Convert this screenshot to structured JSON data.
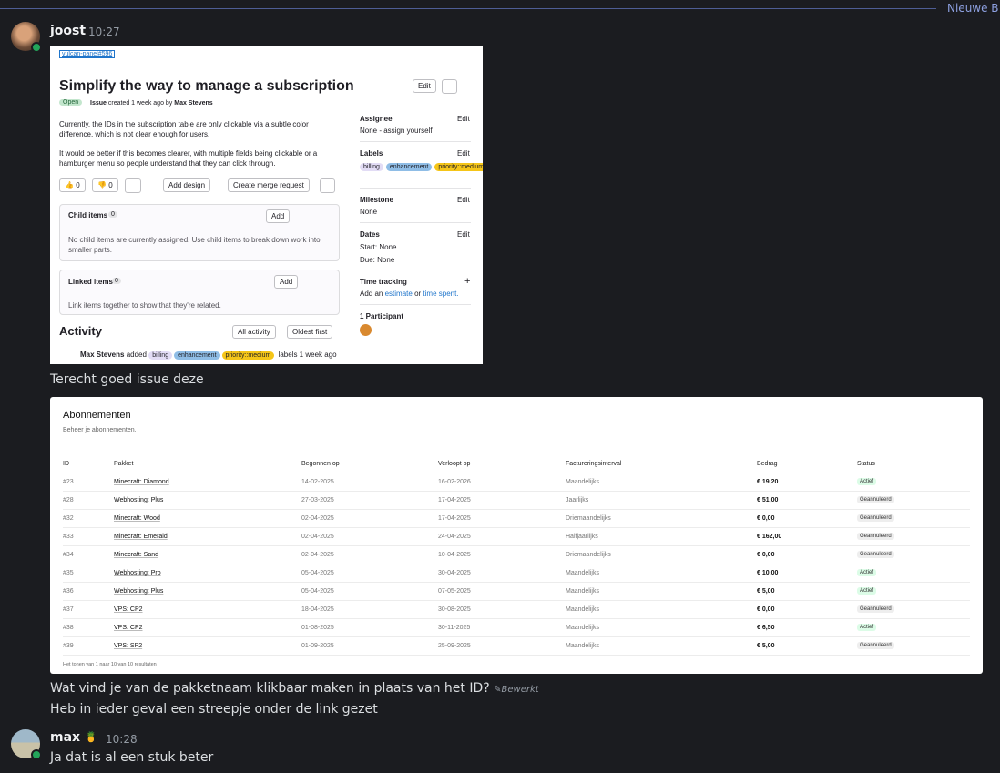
{
  "new_messages_label": "Nieuwe B",
  "messages": [
    {
      "author": "joost",
      "time": "10:27",
      "lines": [
        "Terecht goed issue deze",
        "Wat vind je van de pakketnaam klikbaar maken in plaats van het ID?",
        "Heb in ieder geval een streepje onder de link gezet"
      ],
      "edited": "Bewerkt"
    },
    {
      "author": "max",
      "time": "10:28",
      "lines": [
        "Ja dat is al een stuk beter"
      ]
    }
  ],
  "issue": {
    "ref": "vulcan-panel#596",
    "title": "Simplify the way to manage a subscription",
    "edit": "Edit",
    "status": "Open",
    "type": "Issue",
    "created": "created 1 week ago by",
    "author": "Max Stevens",
    "description": [
      "Currently, the IDs in the subscription table are only clickable via a subtle color difference, which is not clear enough for users.",
      "It would be better if this becomes clearer, with multiple fields being clickable or a hamburger menu so people understand that they can click through."
    ],
    "reactions": [
      0,
      0
    ],
    "add_design": "Add design",
    "create_merge_request": "Create merge request",
    "child_items": {
      "title": "Child items",
      "count": 0,
      "add": "Add",
      "empty": "No child items are currently assigned. Use child items to break down work into smaller parts."
    },
    "linked_items": {
      "title": "Linked items",
      "count": 0,
      "add": "Add",
      "empty": "Link items together to show that they're related."
    },
    "activity": {
      "title": "Activity",
      "filter": "All activity",
      "sort": "Oldest first",
      "author": "Max Stevens",
      "verb": "added",
      "suffix": "labels 1 week ago"
    },
    "labels": [
      {
        "text": "billing",
        "color": "#e2dcf5"
      },
      {
        "text": "enhancement",
        "color": "#8fbde6"
      },
      {
        "text": "priority::medium",
        "color": "#f5c518"
      }
    ],
    "sidebar": {
      "assignee": {
        "title": "Assignee",
        "edit": "Edit",
        "value": "None - assign yourself"
      },
      "labels": {
        "title": "Labels",
        "edit": "Edit"
      },
      "milestone": {
        "title": "Milestone",
        "edit": "Edit",
        "value": "None"
      },
      "dates": {
        "title": "Dates",
        "edit": "Edit",
        "start_label": "Start:",
        "start_value": "None",
        "due_label": "Due:",
        "due_value": "None"
      },
      "time_tracking": {
        "title": "Time tracking",
        "prefix": "Add an",
        "estimate": "estimate",
        "or": "or",
        "spent": "time spent."
      },
      "participants": "1 Participant"
    }
  },
  "table": {
    "title": "Abonnementen",
    "subtitle": "Beheer je abonnementen.",
    "columns": [
      "ID",
      "Pakket",
      "Begonnen op",
      "Verloopt op",
      "Factureringsinterval",
      "Bedrag",
      "Status"
    ],
    "rows": [
      {
        "cells": [
          "#23",
          "Minecraft: Diamond",
          "14-02-2025",
          "16-02-2026",
          "Maandelijks",
          "€ 19,20",
          "Actief"
        ],
        "status_color": "#dcfce7"
      },
      {
        "cells": [
          "#28",
          "Webhosting: Plus",
          "27-03-2025",
          "17-04-2025",
          "Jaarlijks",
          "€ 51,00",
          "Geannuleerd"
        ],
        "status_color": "#eeeeee"
      },
      {
        "cells": [
          "#32",
          "Minecraft: Wood",
          "02-04-2025",
          "17-04-2025",
          "Driemaandelijks",
          "€ 0,00",
          "Geannuleerd"
        ],
        "status_color": "#eeeeee"
      },
      {
        "cells": [
          "#33",
          "Minecraft: Emerald",
          "02-04-2025",
          "24-04-2025",
          "Halfjaarlijks",
          "€ 162,00",
          "Geannuleerd"
        ],
        "status_color": "#eeeeee"
      },
      {
        "cells": [
          "#34",
          "Minecraft: Sand",
          "02-04-2025",
          "10-04-2025",
          "Driemaandelijks",
          "€ 0,00",
          "Geannuleerd"
        ],
        "status_color": "#eeeeee"
      },
      {
        "cells": [
          "#35",
          "Webhosting: Pro",
          "05-04-2025",
          "30-04-2025",
          "Maandelijks",
          "€ 10,00",
          "Actief"
        ],
        "status_color": "#dcfce7"
      },
      {
        "cells": [
          "#36",
          "Webhosting: Plus",
          "05-04-2025",
          "07-05-2025",
          "Maandelijks",
          "€ 5,00",
          "Actief"
        ],
        "status_color": "#dcfce7"
      },
      {
        "cells": [
          "#37",
          "VPS: CP2",
          "18-04-2025",
          "30-08-2025",
          "Maandelijks",
          "€ 0,00",
          "Geannuleerd"
        ],
        "status_color": "#eeeeee"
      },
      {
        "cells": [
          "#38",
          "VPS: CP2",
          "01-08-2025",
          "30-11-2025",
          "Maandelijks",
          "€ 6,50",
          "Actief"
        ],
        "status_color": "#dcfce7"
      },
      {
        "cells": [
          "#39",
          "VPS: SP2",
          "01-09-2025",
          "25-09-2025",
          "Maandelijks",
          "€ 5,00",
          "Geannuleerd"
        ],
        "status_color": "#eeeeee"
      }
    ],
    "footer": "Het tonen van 1 naar 10 van 10 resultaten"
  }
}
